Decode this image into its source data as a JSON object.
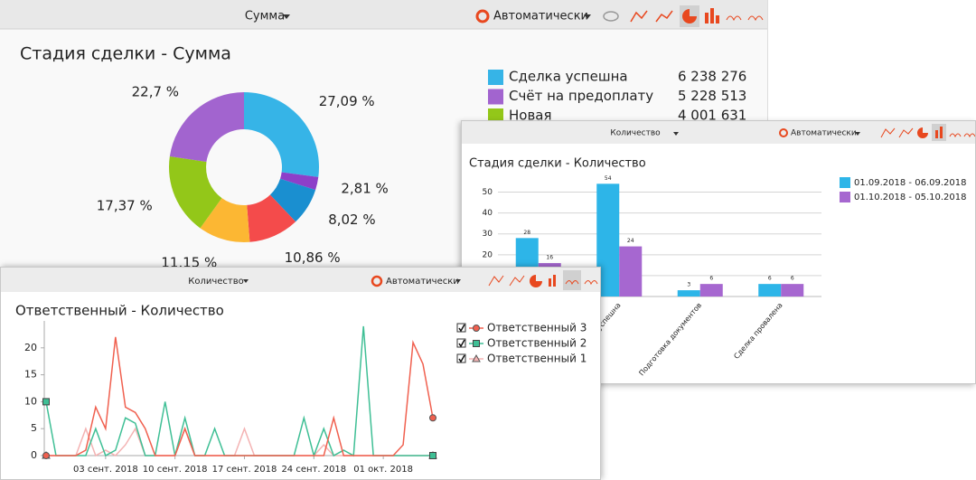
{
  "chart_data": [
    {
      "type": "pie",
      "donut": true,
      "toolbar": {
        "measure": "Сумма",
        "mode": "Автоматически"
      },
      "title": "Стадия сделки - Сумма",
      "values": [
        27.09,
        2.81,
        8.02,
        10.86,
        11.15,
        17.37,
        22.7
      ],
      "value_labels": [
        "27,09 %",
        "2,81 %",
        "8,02 %",
        "10,86 %",
        "11,15 %",
        "17,37 %",
        "22,7 %"
      ],
      "colors": [
        "#36b4e7",
        "#8d3fc9",
        "#1a8fd0",
        "#f44b4b",
        "#fcb733",
        "#93c719",
        "#a264cf"
      ],
      "legend": {
        "names": [
          "Сделка успешна",
          "Счёт на предоплату",
          "Новая"
        ],
        "colors": [
          "#36b4e7",
          "#a264cf",
          "#93c719"
        ],
        "amounts": [
          6238276,
          5228513,
          4001631
        ],
        "amount_labels": [
          "6 238 276",
          "5 228 513",
          "4 001 631"
        ]
      }
    },
    {
      "type": "bar",
      "toolbar": {
        "measure": "Количество",
        "mode": "Автоматически"
      },
      "title": "Стадия сделки - Количество",
      "categories": [
        null,
        "Сделка успешна",
        "Подготовка документов",
        "Сделка провалена"
      ],
      "series": [
        {
          "name": "01.09.2018 - 06.09.2018",
          "color": "#2db5e8",
          "values": [
            28,
            54,
            3,
            6
          ]
        },
        {
          "name": "01.10.2018 - 05.10.2018",
          "color": "#a667d0",
          "values": [
            16,
            24,
            6,
            6
          ]
        }
      ],
      "ylim": [
        0,
        55
      ],
      "yticks": [
        10,
        20,
        30,
        40,
        50
      ],
      "grid": true
    },
    {
      "type": "line",
      "toolbar": {
        "measure": "Количество",
        "mode": "Автоматически"
      },
      "title": "Ответственный - Количество",
      "categories": [
        null,
        null,
        null,
        null,
        null,
        null,
        "03 сент. 2018",
        null,
        null,
        null,
        null,
        null,
        null,
        "10 сент. 2018",
        null,
        null,
        null,
        null,
        null,
        null,
        "17 сент. 2018",
        null,
        null,
        null,
        null,
        null,
        null,
        "24 сент. 2018",
        null,
        null,
        null,
        null,
        null,
        null,
        "01 окт. 2018",
        null,
        null,
        null,
        null,
        null
      ],
      "series": [
        {
          "name": "Ответственный 3",
          "color": "#f0604f",
          "marker": "circle",
          "values": [
            0,
            0,
            0,
            0,
            1,
            9,
            5,
            22,
            9,
            8,
            5,
            0,
            0,
            0,
            5,
            0,
            0,
            0,
            0,
            0,
            0,
            0,
            0,
            0,
            0,
            0,
            0,
            0,
            0,
            7,
            0,
            0,
            0,
            0,
            0,
            0,
            2,
            21,
            17,
            7
          ]
        },
        {
          "name": "Ответственный 2",
          "color": "#3fbf95",
          "marker": "square",
          "values": [
            10,
            0,
            0,
            0,
            0,
            5,
            0,
            1,
            7,
            6,
            0,
            0,
            10,
            0,
            7,
            0,
            0,
            5,
            0,
            0,
            0,
            0,
            0,
            0,
            0,
            0,
            7,
            0,
            5,
            0,
            1,
            0,
            24,
            0,
            0,
            0,
            0,
            0,
            0,
            0
          ]
        },
        {
          "name": "Ответственный 1",
          "color": "#f4b3b3",
          "marker": "triangle",
          "values": [
            0,
            0,
            0,
            0,
            5,
            0,
            1,
            0,
            2,
            5,
            0,
            0,
            0,
            0,
            5,
            0,
            0,
            0,
            0,
            0,
            5,
            0,
            0,
            0,
            0,
            0,
            0,
            0,
            2,
            0,
            0,
            0,
            0,
            0,
            0,
            0,
            0,
            0,
            0,
            0
          ]
        }
      ],
      "ylim": [
        0,
        25
      ],
      "yticks": [
        0,
        5,
        10,
        15,
        20
      ],
      "grid": false
    }
  ]
}
